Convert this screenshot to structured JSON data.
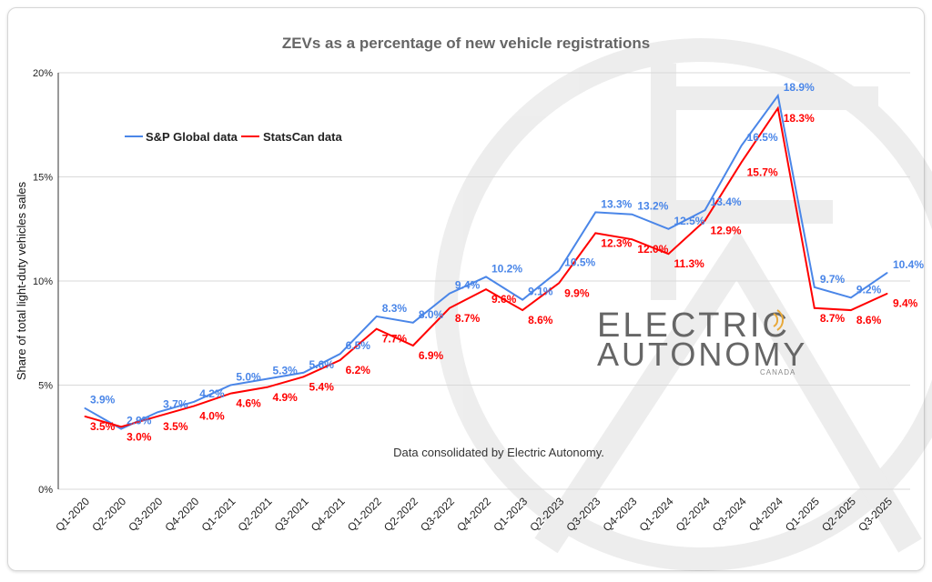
{
  "chart_data": {
    "type": "line",
    "title": "ZEVs as a percentage of new vehicle registrations",
    "ylabel": "Share of total light-duty vehicles sales",
    "xlabel": "",
    "ylim": [
      0,
      20
    ],
    "yticks": [
      "0%",
      "5%",
      "10%",
      "15%",
      "20%"
    ],
    "ytick_values": [
      0,
      5,
      10,
      15,
      20
    ],
    "grid": true,
    "legend_position": "top-left",
    "annotation": "Data consolidated by Electric Autonomy.",
    "categories": [
      "Q1-2020",
      "Q2-2020",
      "Q3-2020",
      "Q4-2020",
      "Q1-2021",
      "Q2-2021",
      "Q3-2021",
      "Q4-2021",
      "Q1-2022",
      "Q2-2022",
      "Q3-2022",
      "Q4-2022",
      "Q1-2023",
      "Q2-2023",
      "Q3-2023",
      "Q4-2023",
      "Q1-2024",
      "Q2-2024",
      "Q3-2024",
      "Q4-2024",
      "Q1-2025",
      "Q2-2025",
      "Q3-2025"
    ],
    "series": [
      {
        "name": "S&P Global data",
        "color": "#4a86e8",
        "values": [
          3.9,
          2.9,
          3.7,
          4.2,
          5.0,
          5.3,
          5.6,
          6.5,
          8.3,
          8.0,
          9.4,
          10.2,
          9.1,
          10.5,
          13.3,
          13.2,
          12.5,
          13.4,
          16.5,
          18.9,
          9.7,
          9.2,
          10.4
        ],
        "labels": [
          "3.9%",
          "2.9%",
          "3.7%",
          "4.2%",
          "5.0%",
          "5.3%",
          "5.6%",
          "6.5%",
          "8.3%",
          "8.0%",
          "9.4%",
          "10.2%",
          "9.1%",
          "10.5%",
          "13.3%",
          "13.2%",
          "12.5%",
          "13.4%",
          "16.5%",
          "18.9%",
          "9.7%",
          "9.2%",
          "10.4%"
        ]
      },
      {
        "name": "StatsCan data",
        "color": "#ff0000",
        "values": [
          3.5,
          3.0,
          3.5,
          4.0,
          4.6,
          4.9,
          5.4,
          6.2,
          7.7,
          6.9,
          8.7,
          9.6,
          8.6,
          9.9,
          12.3,
          12.0,
          11.3,
          12.9,
          15.7,
          18.3,
          8.7,
          8.6,
          9.4
        ],
        "labels": [
          "3.5%",
          "3.0%",
          "3.5%",
          "4.0%",
          "4.6%",
          "4.9%",
          "5.4%",
          "6.2%",
          "7.7%",
          "6.9%",
          "8.7%",
          "9.6%",
          "8.6%",
          "9.9%",
          "12.3%",
          "12.0%",
          "11.3%",
          "12.9%",
          "15.7%",
          "18.3%",
          "8.7%",
          "8.6%",
          "9.4%"
        ]
      }
    ]
  },
  "watermark": {
    "line1": "ELECTRIC",
    "line2": "AUTONOMY",
    "line3": "CANADA"
  }
}
